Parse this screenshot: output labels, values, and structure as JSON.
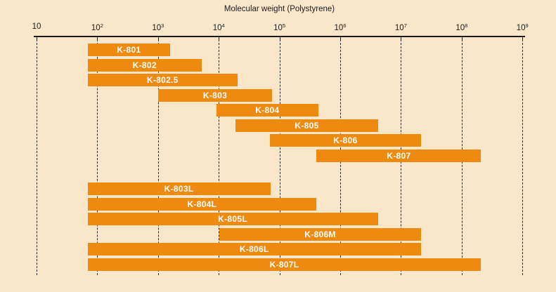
{
  "title": "Molecular weight (Polystyrene)",
  "colors": {
    "background": "#fae6c9",
    "bar": "#ee8a10",
    "axis": "#1a1a1a",
    "bar_label_text": "#ffffff"
  },
  "chart_data": {
    "type": "bar",
    "orientation": "horizontal-range",
    "title": "Molecular weight (Polystyrene)",
    "xlabel": "Molecular weight (Polystyrene)",
    "ylabel": "",
    "x_axis": {
      "scale": "log10",
      "min_exponent": 1,
      "max_exponent": 9,
      "tick_labels": [
        "10",
        "10²",
        "10³",
        "10⁴",
        "10⁵",
        "10⁶",
        "10⁷",
        "10⁸",
        "10⁹"
      ],
      "gridlines": "dashed-vertical"
    },
    "legend": null,
    "bar_color": "#ee8a10",
    "bars": [
      {
        "label": "K-801",
        "group": 1,
        "row": 0,
        "log_min": 1.84,
        "log_max": 3.2,
        "mw_range": "~70 – 1.5×10³"
      },
      {
        "label": "K-802",
        "group": 1,
        "row": 1,
        "log_min": 1.84,
        "log_max": 3.72,
        "mw_range": "~70 – 5×10³"
      },
      {
        "label": "K-802.5",
        "group": 1,
        "row": 2,
        "log_min": 1.84,
        "log_max": 4.31,
        "mw_range": "~70 – 2×10⁴"
      },
      {
        "label": "K-803",
        "group": 1,
        "row": 3,
        "log_min": 3.0,
        "log_max": 4.88,
        "mw_range": "1×10³ – 7×10⁴"
      },
      {
        "label": "K-804",
        "group": 1,
        "row": 4,
        "log_min": 3.96,
        "log_max": 5.64,
        "mw_range": "9×10³ – 4×10⁵"
      },
      {
        "label": "K-805",
        "group": 1,
        "row": 5,
        "log_min": 4.28,
        "log_max": 6.62,
        "mw_range": "2×10⁴ – 4×10⁶"
      },
      {
        "label": "K-806",
        "group": 1,
        "row": 6,
        "log_min": 4.84,
        "log_max": 7.33,
        "mw_range": "7×10⁴ – 2×10⁷"
      },
      {
        "label": "K-807",
        "group": 1,
        "row": 7,
        "log_min": 5.61,
        "log_max": 8.32,
        "mw_range": "4×10⁵ – 2×10⁸"
      },
      {
        "label": "K-803L",
        "group": 2,
        "row": 0,
        "log_min": 1.84,
        "log_max": 4.85,
        "mw_range": "~70 – 7×10⁴"
      },
      {
        "label": "K-804L",
        "group": 2,
        "row": 1,
        "log_min": 1.84,
        "log_max": 5.61,
        "mw_range": "~70 – 4×10⁵"
      },
      {
        "label": "K-805L",
        "group": 2,
        "row": 2,
        "log_min": 1.84,
        "log_max": 6.62,
        "mw_range": "~70 – 4×10⁶"
      },
      {
        "label": "K-806M",
        "group": 2,
        "row": 3,
        "log_min": 4.01,
        "log_max": 7.33,
        "mw_range": "1×10⁴ – 2×10⁷"
      },
      {
        "label": "K-806L",
        "group": 2,
        "row": 4,
        "log_min": 1.84,
        "log_max": 7.33,
        "mw_range": "~70 – 2×10⁷"
      },
      {
        "label": "K-807L",
        "group": 2,
        "row": 5,
        "log_min": 1.84,
        "log_max": 8.32,
        "mw_range": "~70 – 2×10⁸"
      }
    ]
  }
}
